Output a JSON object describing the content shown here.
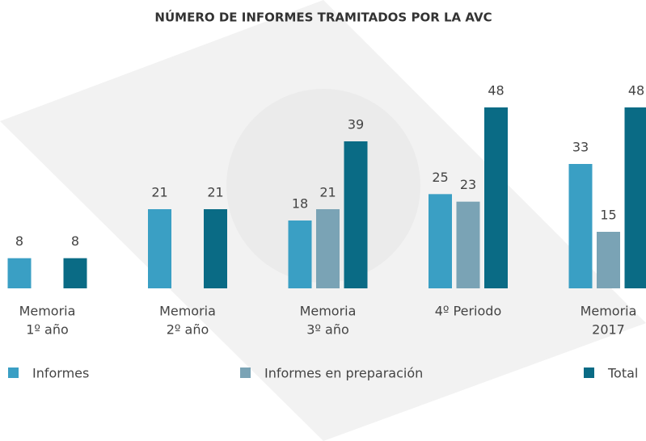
{
  "chart_data": {
    "type": "bar",
    "title": "NÚMERO DE INFORMES TRAMITADOS POR LA AVC",
    "categories": [
      [
        "Memoria",
        "1º año"
      ],
      [
        "Memoria",
        "2º año"
      ],
      [
        "Memoria",
        "3º año"
      ],
      [
        "4º Periodo"
      ],
      [
        "Memoria",
        "2017"
      ]
    ],
    "series": [
      {
        "name": "Informes",
        "color": "#3a9fc4",
        "values": [
          8,
          21,
          18,
          25,
          33
        ]
      },
      {
        "name": "Informes en preparación",
        "color": "#7aa3b5",
        "values": [
          null,
          null,
          21,
          23,
          15
        ]
      },
      {
        "name": "Total",
        "color": "#0a6b85",
        "values": [
          8,
          21,
          39,
          48,
          48
        ]
      }
    ],
    "ylim": [
      0,
      48
    ]
  }
}
